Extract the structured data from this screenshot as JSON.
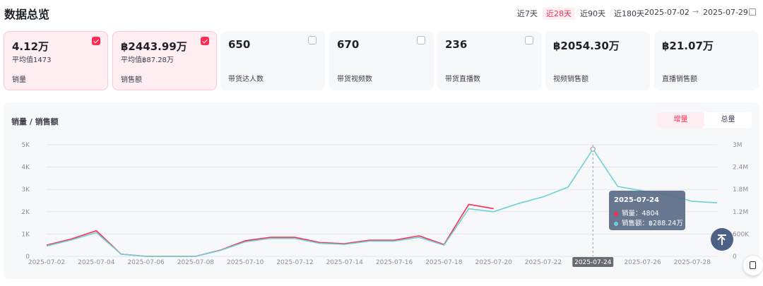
{
  "header": {
    "title": "数据总览",
    "ranges": [
      "近7天",
      "近28天",
      "近90天",
      "近180天"
    ],
    "active_range": "近28天",
    "date_start": "2025-07-02",
    "date_arrow": "→",
    "date_end": "2025-07-29"
  },
  "cards": [
    {
      "value": "4.12万",
      "avg": "平均值1473",
      "label": "销量",
      "checked": true
    },
    {
      "value": "฿2443.99万",
      "avg": "平均值฿87.28万",
      "label": "销售额",
      "checked": true
    },
    {
      "value": "650",
      "avg": "",
      "label": "带货达人数",
      "checked": false
    },
    {
      "value": "670",
      "avg": "",
      "label": "带货视频数",
      "checked": false
    },
    {
      "value": "236",
      "avg": "",
      "label": "带货直播数",
      "checked": false
    },
    {
      "value": "฿2054.30万",
      "avg": "",
      "label": "视频销售额"
    },
    {
      "value": "฿21.07万",
      "avg": "",
      "label": "直播销售额"
    }
  ],
  "chart_panel": {
    "title": "销量 / 销售额",
    "toggle": [
      "增量",
      "总量"
    ],
    "active_toggle": "增量"
  },
  "colors": {
    "sales_volume": "#fe2c55",
    "sales_amount": "#6fd1d1",
    "accent": "#fe2c55"
  },
  "chart_data": {
    "type": "line",
    "x": [
      "2025-07-02",
      "2025-07-03",
      "2025-07-04",
      "2025-07-05",
      "2025-07-06",
      "2025-07-07",
      "2025-07-08",
      "2025-07-09",
      "2025-07-10",
      "2025-07-11",
      "2025-07-12",
      "2025-07-13",
      "2025-07-14",
      "2025-07-15",
      "2025-07-16",
      "2025-07-17",
      "2025-07-18",
      "2025-07-19",
      "2025-07-20",
      "2025-07-21",
      "2025-07-22",
      "2025-07-23",
      "2025-07-24",
      "2025-07-25",
      "2025-07-26",
      "2025-07-27",
      "2025-07-28",
      "2025-07-29"
    ],
    "x_tick_labels": [
      "2025-07-02",
      "2025-07-04",
      "2025-07-06",
      "2025-07-08",
      "2025-07-10",
      "2025-07-12",
      "2025-07-14",
      "2025-07-16",
      "2025-07-18",
      "2025-07-20",
      "2025-07-22",
      "2025-07-24",
      "2025-07-26",
      "2025-07-28"
    ],
    "series": [
      {
        "name": "销量",
        "axis": "left",
        "values": [
          500,
          780,
          1150,
          100,
          0,
          0,
          0,
          280,
          700,
          850,
          850,
          620,
          570,
          720,
          720,
          920,
          530,
          2330,
          2140,
          null,
          null,
          null,
          4804,
          null,
          null,
          null,
          null,
          null
        ]
      },
      {
        "name": "销售额",
        "axis": "right",
        "values": [
          280000,
          440000,
          640000,
          60000,
          0,
          0,
          0,
          160000,
          390000,
          480000,
          480000,
          350000,
          320000,
          410000,
          410000,
          510000,
          300000,
          1280000,
          1200000,
          1420000,
          1600000,
          1860000,
          2882400,
          1880000,
          1760000,
          1660000,
          1480000,
          1440000
        ]
      }
    ],
    "y_left": {
      "ticks": [
        "0",
        "1K",
        "2K",
        "3K",
        "4K",
        "5K"
      ],
      "range": [
        0,
        5000
      ]
    },
    "y_right": {
      "ticks": [
        "0",
        "600K",
        "1.2M",
        "1.8M",
        "2.4M",
        "3M"
      ],
      "range": [
        0,
        3000000
      ]
    },
    "highlight": "2025-07-24",
    "grid": true
  },
  "tooltip": {
    "date": "2025-07-24",
    "rows": [
      {
        "label": "销量：",
        "value": "4804"
      },
      {
        "label": "销售额：",
        "value": "฿288.24万"
      }
    ]
  }
}
